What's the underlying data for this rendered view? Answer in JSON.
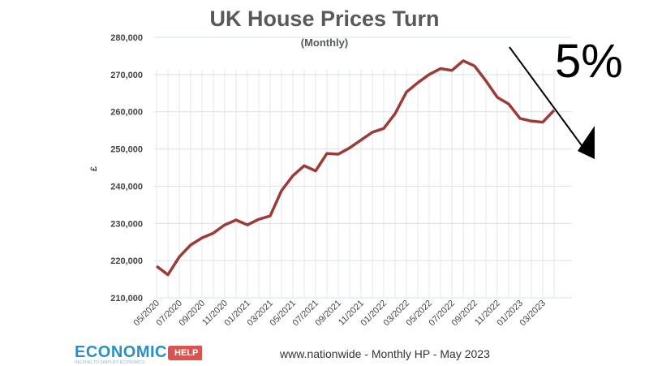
{
  "chart_data": {
    "type": "line",
    "title": "UK House Prices Turn",
    "subtitle": "(Monthly)",
    "xlabel": "",
    "ylabel": "£",
    "ylim": [
      210000,
      280000
    ],
    "yticks": [
      "210,000",
      "220,000",
      "230,000",
      "240,000",
      "250,000",
      "260,000",
      "270,000",
      "280,000"
    ],
    "ytick_values": [
      210000,
      220000,
      230000,
      240000,
      250000,
      260000,
      270000,
      280000
    ],
    "xtick_labels": [
      "05/2020",
      "07/2020",
      "09/2020",
      "11/2020",
      "01/2021",
      "03/2021",
      "05/2021",
      "07/2021",
      "09/2021",
      "11/2021",
      "01/2022",
      "03/2022",
      "05/2022",
      "07/2022",
      "09/2022",
      "11/2022",
      "01/2023",
      "03/2023"
    ],
    "grid": true,
    "series": [
      {
        "name": "Monthly HP",
        "color": "#9c3b38",
        "values": [
          218500,
          216200,
          221000,
          224200,
          226100,
          227400,
          229600,
          230900,
          229600,
          231100,
          232000,
          238800,
          242800,
          245500,
          244100,
          248800,
          248600,
          250300,
          252400,
          254500,
          255500,
          259500,
          265300,
          267800,
          270000,
          271600,
          271100,
          273700,
          272300,
          268300,
          263900,
          262100,
          258200,
          257500,
          257200,
          260400
        ]
      }
    ],
    "annotation": "5%",
    "source": "www.nationwide - Monthly HP - May 2023"
  },
  "logo": {
    "name": "ECONOMICS",
    "badge": "HELP",
    "tagline": "HELPING TO SIMPLIFY ECONOMICS"
  }
}
